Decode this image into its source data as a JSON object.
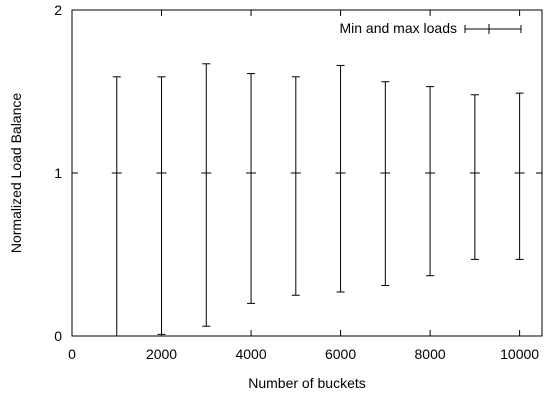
{
  "chart_data": {
    "type": "errorbar",
    "xlabel": "Number of buckets",
    "ylabel": "Normalized Load Balance",
    "xlim": [
      0,
      10500
    ],
    "ylim": [
      0,
      2
    ],
    "x_ticks": [
      0,
      2000,
      4000,
      6000,
      8000,
      10000
    ],
    "y_ticks": [
      0,
      1,
      2
    ],
    "legend_position": "top-right",
    "series": [
      {
        "name": "Min and max loads",
        "x": [
          1000,
          2000,
          3000,
          4000,
          5000,
          6000,
          7000,
          8000,
          9000,
          10000
        ],
        "y": [
          1,
          1,
          1,
          1,
          1,
          1,
          1,
          1,
          1,
          1
        ],
        "y_min": [
          0.0,
          0.01,
          0.06,
          0.2,
          0.25,
          0.27,
          0.31,
          0.37,
          0.47,
          0.47
        ],
        "y_max": [
          1.59,
          1.59,
          1.67,
          1.61,
          1.59,
          1.66,
          1.56,
          1.53,
          1.48,
          1.49
        ]
      }
    ]
  }
}
